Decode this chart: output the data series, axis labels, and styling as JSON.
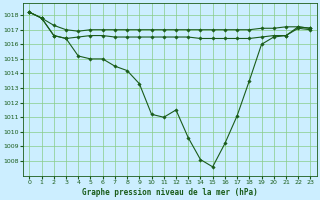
{
  "background_color": "#cceeff",
  "grid_color": "#88cc88",
  "line_color": "#1a5c1a",
  "title": "Graphe pression niveau de la mer (hPa)",
  "xlim": [
    -0.5,
    23.5
  ],
  "ylim": [
    1007.0,
    1018.8
  ],
  "yticks": [
    1008,
    1009,
    1010,
    1011,
    1012,
    1013,
    1014,
    1015,
    1016,
    1017,
    1018
  ],
  "xticks": [
    0,
    1,
    2,
    3,
    4,
    5,
    6,
    7,
    8,
    9,
    10,
    11,
    12,
    13,
    14,
    15,
    16,
    17,
    18,
    19,
    20,
    21,
    22,
    23
  ],
  "line_top": [
    1018.2,
    1017.8,
    1017.3,
    1017.0,
    1016.9,
    1017.0,
    1017.0,
    1017.0,
    1017.0,
    1017.0,
    1017.0,
    1017.0,
    1017.0,
    1017.0,
    1017.0,
    1017.0,
    1017.0,
    1017.0,
    1017.0,
    1017.1,
    1017.1,
    1017.2,
    1017.2,
    1017.1
  ],
  "line_mid": [
    1018.2,
    1017.8,
    1016.6,
    1016.4,
    1016.5,
    1016.6,
    1016.6,
    1016.5,
    1016.5,
    1016.5,
    1016.5,
    1016.5,
    1016.5,
    1016.5,
    1016.4,
    1016.4,
    1016.4,
    1016.4,
    1016.4,
    1016.5,
    1016.6,
    1016.6,
    1017.1,
    1017.0
  ],
  "line_main": [
    1018.2,
    1017.8,
    1016.6,
    1016.4,
    1015.2,
    1015.0,
    1015.0,
    1014.5,
    1014.2,
    1013.3,
    1011.2,
    1011.0,
    1011.5,
    1009.6,
    1008.1,
    1007.6,
    1009.2,
    1011.1,
    1013.5,
    1016.0,
    1016.5,
    1016.6,
    1017.2,
    1017.1
  ]
}
